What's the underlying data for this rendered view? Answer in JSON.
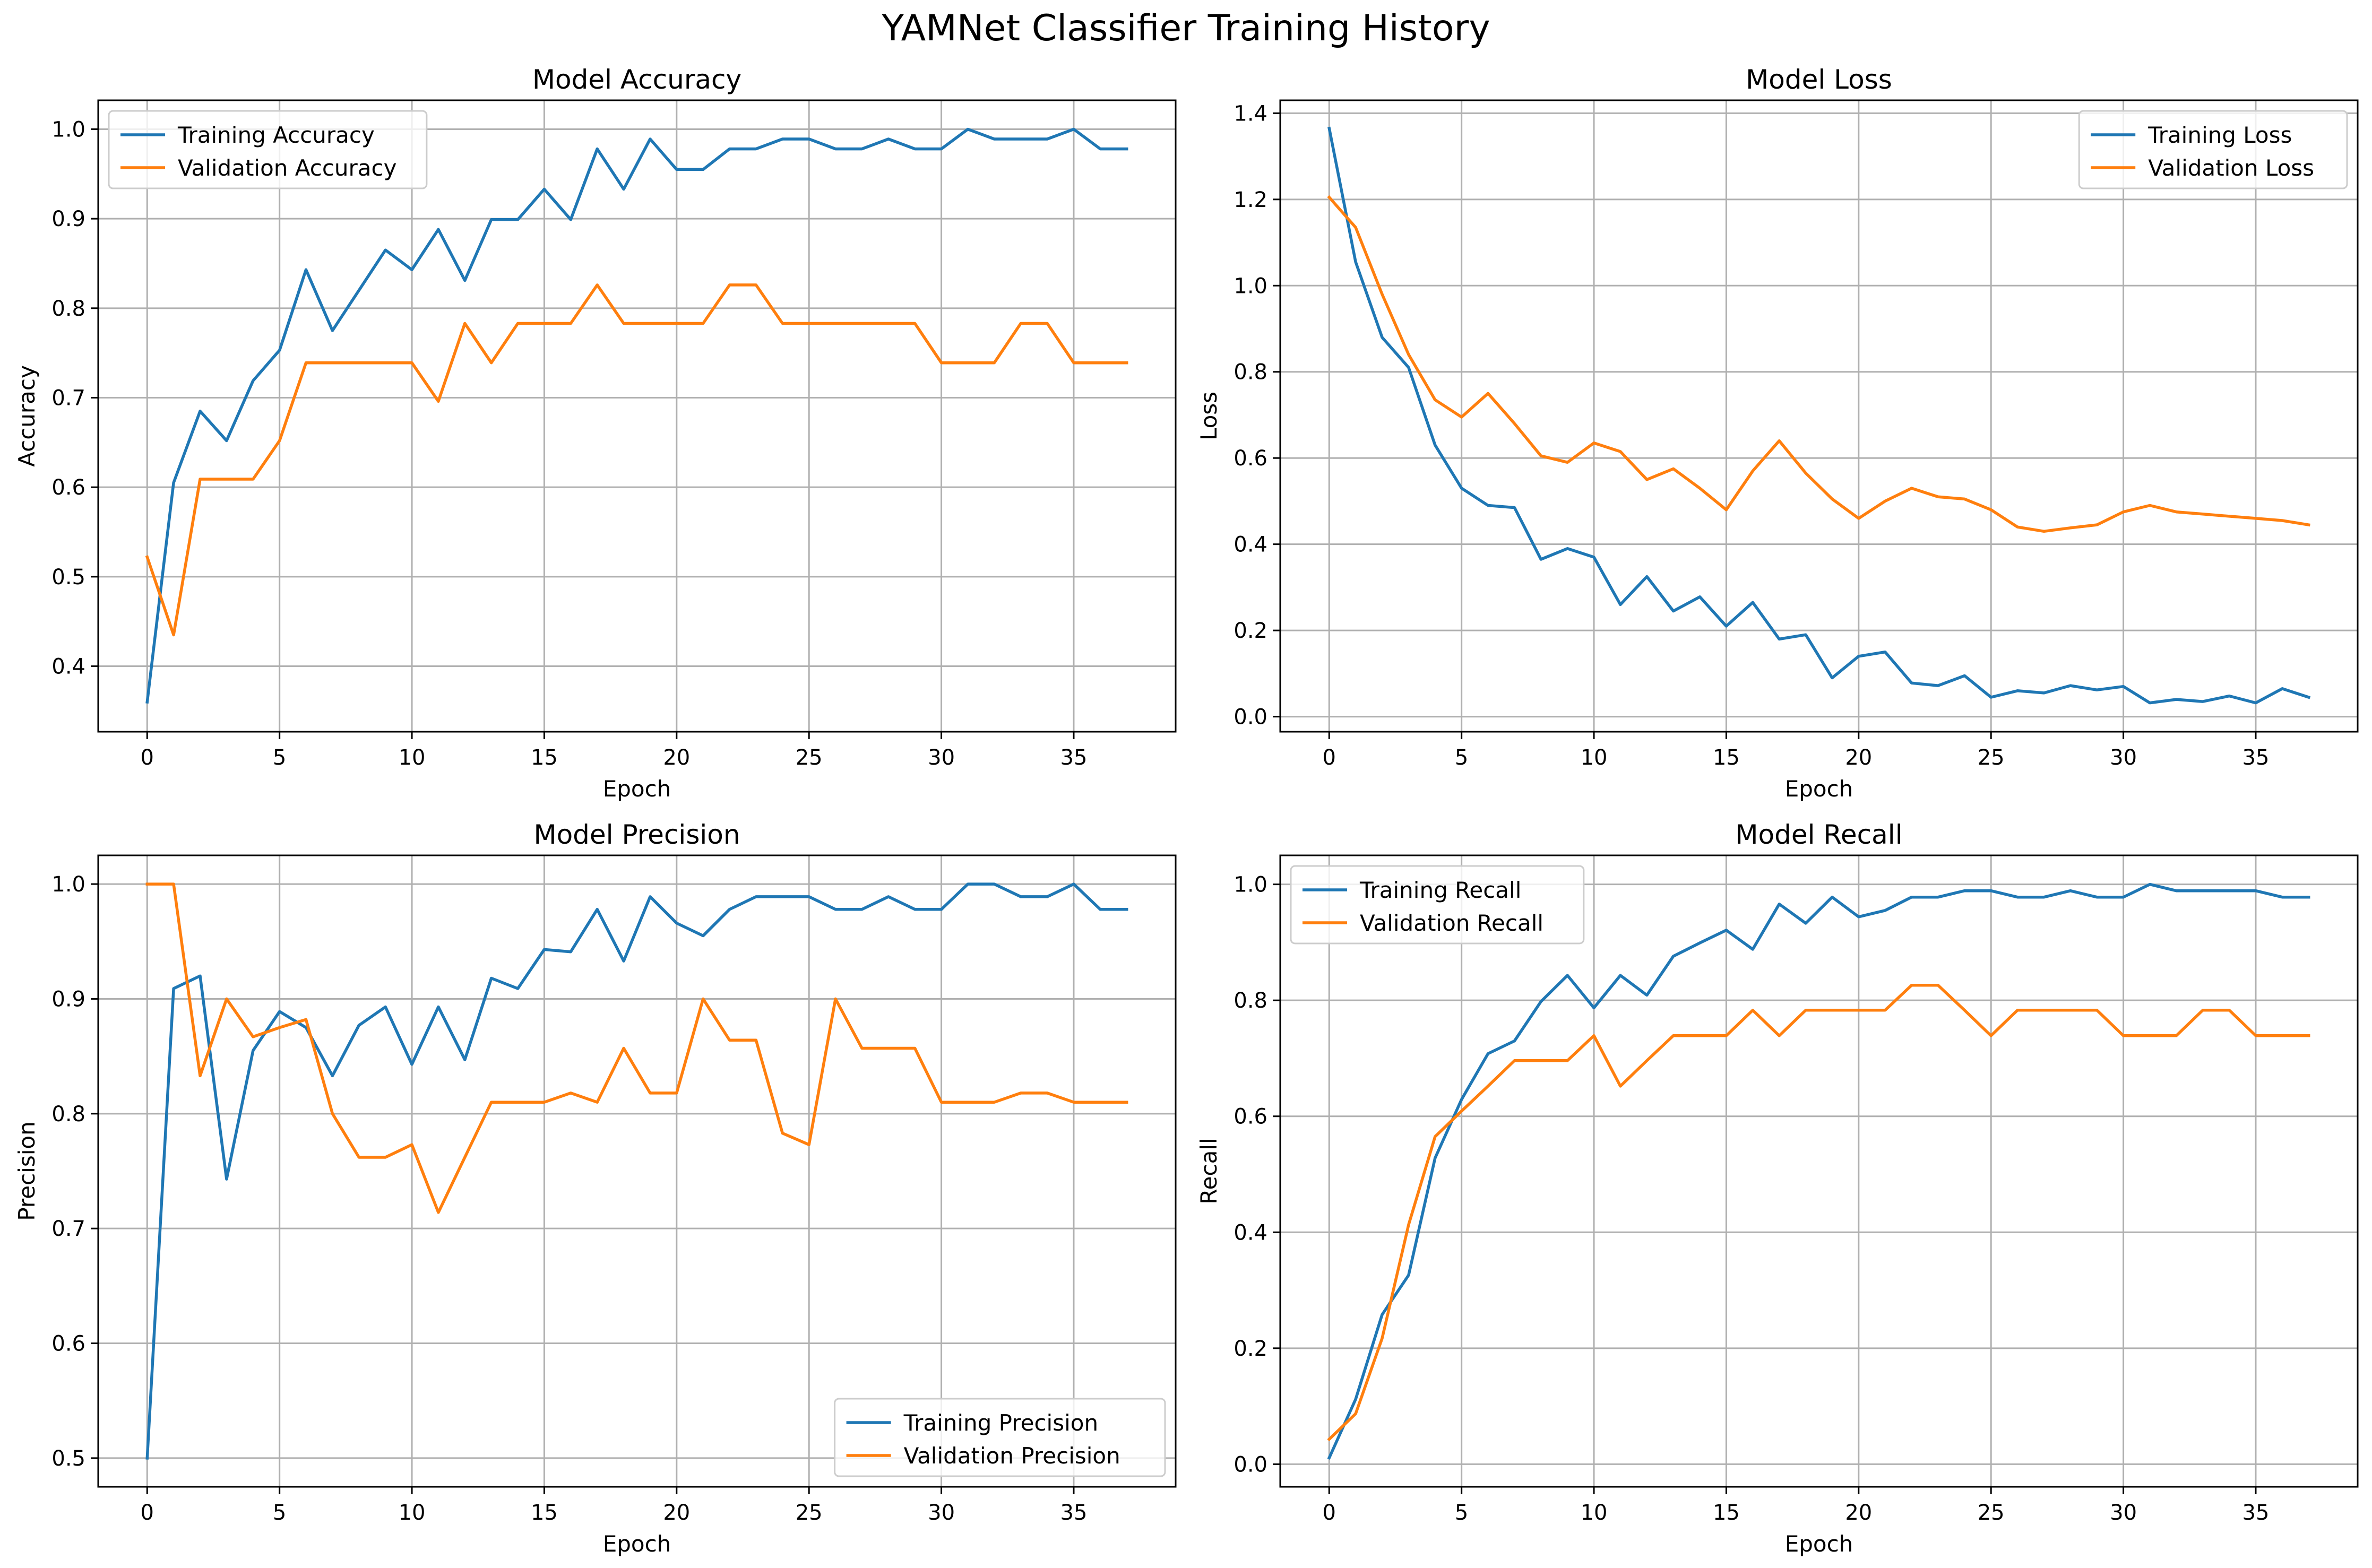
{
  "figure_title": "YAMNet Classifier Training History",
  "chart_data": [
    {
      "type": "line",
      "title": "Model Accuracy",
      "xlabel": "Epoch",
      "ylabel": "Accuracy",
      "xlim": [
        -1.85,
        38.85
      ],
      "ylim": [
        0.3268,
        1.0323
      ],
      "xticks": [
        0,
        5,
        10,
        15,
        20,
        25,
        30,
        35
      ],
      "yticks": [
        0.4,
        0.5,
        0.6,
        0.7,
        0.8,
        0.9,
        1.0
      ],
      "ytick_labels": [
        "0.4",
        "0.5",
        "0.6",
        "0.7",
        "0.8",
        "0.9",
        "1.0"
      ],
      "grid": true,
      "legend": "upper-left",
      "x": [
        0,
        1,
        2,
        3,
        4,
        5,
        6,
        7,
        8,
        9,
        10,
        11,
        12,
        13,
        14,
        15,
        16,
        17,
        18,
        19,
        20,
        21,
        22,
        23,
        24,
        25,
        26,
        27,
        28,
        29,
        30,
        31,
        32,
        33,
        34,
        35,
        36,
        37
      ],
      "series": [
        {
          "name": "Training Accuracy",
          "color": "#1f77b4",
          "values": [
            0.36,
            0.605,
            0.685,
            0.652,
            0.719,
            0.753,
            0.843,
            0.775,
            0.82,
            0.865,
            0.843,
            0.888,
            0.831,
            0.899,
            0.899,
            0.933,
            0.899,
            0.978,
            0.933,
            0.989,
            0.955,
            0.955,
            0.978,
            0.978,
            0.989,
            0.989,
            0.978,
            0.978,
            0.989,
            0.978,
            0.978,
            1.0,
            0.989,
            0.989,
            0.989,
            1.0,
            0.978,
            0.978
          ]
        },
        {
          "name": "Validation Accuracy",
          "color": "#ff7f0e",
          "values": [
            0.522,
            0.435,
            0.609,
            0.609,
            0.609,
            0.652,
            0.739,
            0.739,
            0.739,
            0.739,
            0.739,
            0.696,
            0.783,
            0.739,
            0.783,
            0.783,
            0.783,
            0.826,
            0.783,
            0.783,
            0.783,
            0.783,
            0.826,
            0.826,
            0.783,
            0.783,
            0.783,
            0.783,
            0.783,
            0.783,
            0.739,
            0.739,
            0.739,
            0.783,
            0.783,
            0.739,
            0.739,
            0.739
          ]
        }
      ]
    },
    {
      "type": "line",
      "title": "Model Loss",
      "xlabel": "Epoch",
      "ylabel": "Loss",
      "xlim": [
        -1.85,
        38.85
      ],
      "ylim": [
        -0.035,
        1.43
      ],
      "xticks": [
        0,
        5,
        10,
        15,
        20,
        25,
        30,
        35
      ],
      "yticks": [
        0.0,
        0.2,
        0.4,
        0.6,
        0.8,
        1.0,
        1.2,
        1.4
      ],
      "ytick_labels": [
        "0.0",
        "0.2",
        "0.4",
        "0.6",
        "0.8",
        "1.0",
        "1.2",
        "1.4"
      ],
      "grid": true,
      "legend": "upper-right",
      "x": [
        0,
        1,
        2,
        3,
        4,
        5,
        6,
        7,
        8,
        9,
        10,
        11,
        12,
        13,
        14,
        15,
        16,
        17,
        18,
        19,
        20,
        21,
        22,
        23,
        24,
        25,
        26,
        27,
        28,
        29,
        30,
        31,
        32,
        33,
        34,
        35,
        36,
        37
      ],
      "series": [
        {
          "name": "Training Loss",
          "color": "#1f77b4",
          "values": [
            1.365,
            1.055,
            0.88,
            0.81,
            0.63,
            0.53,
            0.49,
            0.485,
            0.365,
            0.39,
            0.37,
            0.26,
            0.325,
            0.245,
            0.278,
            0.21,
            0.265,
            0.18,
            0.19,
            0.09,
            0.14,
            0.15,
            0.078,
            0.072,
            0.095,
            0.045,
            0.06,
            0.055,
            0.072,
            0.062,
            0.07,
            0.032,
            0.04,
            0.035,
            0.048,
            0.032,
            0.065,
            0.045
          ]
        },
        {
          "name": "Validation Loss",
          "color": "#ff7f0e",
          "values": [
            1.205,
            1.135,
            0.98,
            0.84,
            0.735,
            0.695,
            0.75,
            0.68,
            0.605,
            0.59,
            0.635,
            0.615,
            0.55,
            0.575,
            0.53,
            0.48,
            0.57,
            0.64,
            0.565,
            0.505,
            0.46,
            0.5,
            0.53,
            0.51,
            0.505,
            0.48,
            0.44,
            0.43,
            0.438,
            0.445,
            0.475,
            0.49,
            0.475,
            0.47,
            0.465,
            0.46,
            0.455,
            0.445
          ]
        }
      ]
    },
    {
      "type": "line",
      "title": "Model Precision",
      "xlabel": "Epoch",
      "ylabel": "Precision",
      "xlim": [
        -1.85,
        38.85
      ],
      "ylim": [
        0.475,
        1.025
      ],
      "xticks": [
        0,
        5,
        10,
        15,
        20,
        25,
        30,
        35
      ],
      "yticks": [
        0.5,
        0.6,
        0.7,
        0.8,
        0.9,
        1.0
      ],
      "ytick_labels": [
        "0.5",
        "0.6",
        "0.7",
        "0.8",
        "0.9",
        "1.0"
      ],
      "grid": true,
      "legend": "lower-right",
      "x": [
        0,
        1,
        2,
        3,
        4,
        5,
        6,
        7,
        8,
        9,
        10,
        11,
        12,
        13,
        14,
        15,
        16,
        17,
        18,
        19,
        20,
        21,
        22,
        23,
        24,
        25,
        26,
        27,
        28,
        29,
        30,
        31,
        32,
        33,
        34,
        35,
        36,
        37
      ],
      "series": [
        {
          "name": "Training Precision",
          "color": "#1f77b4",
          "values": [
            0.5,
            0.909,
            0.92,
            0.743,
            0.855,
            0.889,
            0.875,
            0.833,
            0.877,
            0.893,
            0.843,
            0.893,
            0.847,
            0.918,
            0.909,
            0.943,
            0.941,
            0.978,
            0.933,
            0.989,
            0.966,
            0.955,
            0.978,
            0.989,
            0.989,
            0.989,
            0.978,
            0.978,
            0.989,
            0.978,
            0.978,
            1.0,
            1.0,
            0.989,
            0.989,
            1.0,
            0.978,
            0.978
          ]
        },
        {
          "name": "Validation Precision",
          "color": "#ff7f0e",
          "values": [
            1.0,
            1.0,
            0.833,
            0.9,
            0.867,
            0.875,
            0.882,
            0.8,
            0.762,
            0.762,
            0.773,
            0.714,
            0.762,
            0.81,
            0.81,
            0.81,
            0.818,
            0.81,
            0.857,
            0.818,
            0.818,
            0.9,
            0.864,
            0.864,
            0.783,
            0.773,
            0.9,
            0.857,
            0.857,
            0.857,
            0.81,
            0.81,
            0.81,
            0.818,
            0.818,
            0.81,
            0.81,
            0.81
          ]
        }
      ]
    },
    {
      "type": "line",
      "title": "Model Recall",
      "xlabel": "Epoch",
      "ylabel": "Recall",
      "xlim": [
        -1.85,
        38.85
      ],
      "ylim": [
        -0.039,
        1.05
      ],
      "xticks": [
        0,
        5,
        10,
        15,
        20,
        25,
        30,
        35
      ],
      "yticks": [
        0.0,
        0.2,
        0.4,
        0.6,
        0.8,
        1.0
      ],
      "ytick_labels": [
        "0.0",
        "0.2",
        "0.4",
        "0.6",
        "0.8",
        "1.0"
      ],
      "grid": true,
      "legend": "upper-left",
      "x": [
        0,
        1,
        2,
        3,
        4,
        5,
        6,
        7,
        8,
        9,
        10,
        11,
        12,
        13,
        14,
        15,
        16,
        17,
        18,
        19,
        20,
        21,
        22,
        23,
        24,
        25,
        26,
        27,
        28,
        29,
        30,
        31,
        32,
        33,
        34,
        35,
        36,
        37
      ],
      "series": [
        {
          "name": "Training Recall",
          "color": "#1f77b4",
          "values": [
            0.011,
            0.112,
            0.258,
            0.326,
            0.528,
            0.629,
            0.708,
            0.73,
            0.798,
            0.843,
            0.787,
            0.843,
            0.809,
            0.876,
            0.899,
            0.921,
            0.888,
            0.966,
            0.933,
            0.978,
            0.944,
            0.955,
            0.978,
            0.978,
            0.989,
            0.989,
            0.978,
            0.978,
            0.989,
            0.978,
            0.978,
            1.0,
            0.989,
            0.989,
            0.989,
            0.989,
            0.978,
            0.978
          ]
        },
        {
          "name": "Validation Recall",
          "color": "#ff7f0e",
          "values": [
            0.043,
            0.087,
            0.217,
            0.413,
            0.565,
            0.609,
            0.652,
            0.696,
            0.696,
            0.696,
            0.739,
            0.652,
            0.696,
            0.739,
            0.739,
            0.739,
            0.783,
            0.739,
            0.783,
            0.783,
            0.783,
            0.783,
            0.826,
            0.826,
            0.783,
            0.739,
            0.783,
            0.783,
            0.783,
            0.783,
            0.739,
            0.739,
            0.739,
            0.783,
            0.783,
            0.739,
            0.739,
            0.739
          ]
        }
      ]
    }
  ]
}
